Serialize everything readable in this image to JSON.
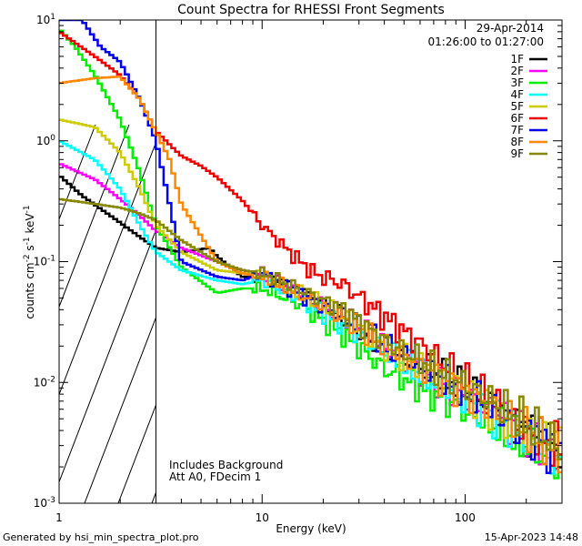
{
  "chart_data": {
    "type": "line",
    "title": "Count Spectra for RHESSI Front Segments",
    "xlabel": "Energy (keV)",
    "ylabel_parts": {
      "a": "counts cm",
      "b": "-2",
      "c": " s",
      "d": "-1",
      "e": " keV",
      "f": "-1"
    },
    "xscale": "log",
    "yscale": "log",
    "xlim": [
      1,
      300
    ],
    "ylim": [
      0.001,
      10
    ],
    "x_ticks": [
      {
        "value": 1,
        "label": "1"
      },
      {
        "value": 10,
        "label": "10"
      },
      {
        "value": 100,
        "label": "100"
      }
    ],
    "y_ticks": [
      {
        "value": 0.001,
        "mant": "10",
        "exp": "-3"
      },
      {
        "value": 0.01,
        "mant": "10",
        "exp": "-2"
      },
      {
        "value": 0.1,
        "mant": "10",
        "exp": "-1"
      },
      {
        "value": 1,
        "mant": "10",
        "exp": "0"
      },
      {
        "value": 10,
        "mant": "10",
        "exp": "1"
      }
    ],
    "date": "29-Apr-2014",
    "time_range": "01:26:00 to 01:27:00",
    "threshold_keV": 3,
    "shaded_region": "hatched below 3 keV",
    "annotation_lines": [
      "Includes Background",
      "Att A0, FDecim 1"
    ],
    "footer_left": "Generated by hsi_min_spectra_plot.pro",
    "footer_right": "15-Apr-2023 14:48",
    "legend_position": "top-right",
    "series": [
      {
        "name": "1F",
        "color": "#000000",
        "anchors": [
          [
            1,
            0.52
          ],
          [
            1.3,
            0.35
          ],
          [
            2,
            0.21
          ],
          [
            2.5,
            0.16
          ],
          [
            3,
            0.13
          ],
          [
            4,
            0.12
          ],
          [
            5.5,
            0.13
          ],
          [
            6,
            0.11
          ],
          [
            8,
            0.075
          ],
          [
            10,
            0.075
          ],
          [
            15,
            0.06
          ],
          [
            25,
            0.035
          ],
          [
            40,
            0.02
          ],
          [
            70,
            0.012
          ],
          [
            120,
            0.0075
          ],
          [
            200,
            0.004
          ],
          [
            300,
            0.0028
          ]
        ]
      },
      {
        "name": "2F",
        "color": "#ff00ff",
        "anchors": [
          [
            1,
            0.65
          ],
          [
            1.5,
            0.48
          ],
          [
            2,
            0.33
          ],
          [
            2.5,
            0.24
          ],
          [
            3,
            0.18
          ],
          [
            4,
            0.13
          ],
          [
            6,
            0.1
          ],
          [
            8,
            0.085
          ],
          [
            10,
            0.08
          ],
          [
            15,
            0.055
          ],
          [
            25,
            0.035
          ],
          [
            40,
            0.02
          ],
          [
            70,
            0.011
          ],
          [
            120,
            0.0065
          ],
          [
            200,
            0.0038
          ],
          [
            300,
            0.0025
          ]
        ]
      },
      {
        "name": "3F",
        "color": "#00ee00",
        "anchors": [
          [
            1,
            8.5
          ],
          [
            1.2,
            6
          ],
          [
            1.5,
            3.5
          ],
          [
            2,
            1.5
          ],
          [
            2.5,
            0.55
          ],
          [
            3,
            0.2
          ],
          [
            4,
            0.09
          ],
          [
            6,
            0.055
          ],
          [
            8,
            0.06
          ],
          [
            10,
            0.06
          ],
          [
            15,
            0.045
          ],
          [
            25,
            0.025
          ],
          [
            40,
            0.013
          ],
          [
            70,
            0.008
          ],
          [
            120,
            0.005
          ],
          [
            200,
            0.003
          ],
          [
            300,
            0.002
          ]
        ]
      },
      {
        "name": "4F",
        "color": "#00ffff",
        "anchors": [
          [
            1,
            1.0
          ],
          [
            1.5,
            0.7
          ],
          [
            2,
            0.4
          ],
          [
            2.5,
            0.2
          ],
          [
            3,
            0.12
          ],
          [
            4,
            0.085
          ],
          [
            6,
            0.07
          ],
          [
            8,
            0.065
          ],
          [
            10,
            0.07
          ],
          [
            15,
            0.05
          ],
          [
            25,
            0.03
          ],
          [
            40,
            0.018
          ],
          [
            70,
            0.01
          ],
          [
            120,
            0.006
          ],
          [
            200,
            0.0035
          ],
          [
            300,
            0.0022
          ]
        ]
      },
      {
        "name": "5F",
        "color": "#cccc00",
        "anchors": [
          [
            1,
            1.5
          ],
          [
            1.5,
            1.3
          ],
          [
            2,
            0.8
          ],
          [
            2.5,
            0.4
          ],
          [
            3,
            0.2
          ],
          [
            4,
            0.12
          ],
          [
            6,
            0.085
          ],
          [
            8,
            0.08
          ],
          [
            10,
            0.08
          ],
          [
            15,
            0.055
          ],
          [
            25,
            0.035
          ],
          [
            40,
            0.02
          ],
          [
            70,
            0.012
          ],
          [
            120,
            0.007
          ],
          [
            200,
            0.004
          ],
          [
            300,
            0.0025
          ]
        ]
      },
      {
        "name": "6F",
        "color": "#ee0000",
        "anchors": [
          [
            1,
            8
          ],
          [
            1.5,
            5
          ],
          [
            2,
            3.5
          ],
          [
            2.5,
            2.2
          ],
          [
            3,
            1.2
          ],
          [
            4,
            0.75
          ],
          [
            5,
            0.62
          ],
          [
            6,
            0.5
          ],
          [
            8,
            0.32
          ],
          [
            10,
            0.2
          ],
          [
            13,
            0.13
          ],
          [
            18,
            0.08
          ],
          [
            25,
            0.065
          ],
          [
            40,
            0.035
          ],
          [
            70,
            0.017
          ],
          [
            100,
            0.01
          ],
          [
            150,
            0.006
          ],
          [
            200,
            0.004
          ],
          [
            300,
            0.0028
          ]
        ]
      },
      {
        "name": "7F",
        "color": "#0000ee",
        "anchors": [
          [
            1,
            10
          ],
          [
            1.3,
            10
          ],
          [
            1.6,
            6
          ],
          [
            2,
            4.5
          ],
          [
            2.5,
            2.2
          ],
          [
            3,
            1.0
          ],
          [
            3.5,
            0.3
          ],
          [
            4,
            0.1
          ],
          [
            6,
            0.075
          ],
          [
            8,
            0.07
          ],
          [
            10,
            0.08
          ],
          [
            15,
            0.055
          ],
          [
            25,
            0.035
          ],
          [
            40,
            0.02
          ],
          [
            70,
            0.012
          ],
          [
            120,
            0.007
          ],
          [
            200,
            0.004
          ],
          [
            300,
            0.0025
          ]
        ]
      },
      {
        "name": "8F",
        "color": "#ff8800",
        "anchors": [
          [
            1,
            3
          ],
          [
            1.5,
            3.3
          ],
          [
            2,
            3.4
          ],
          [
            2.5,
            2.2
          ],
          [
            3,
            1.2
          ],
          [
            3.5,
            0.7
          ],
          [
            4,
            0.3
          ],
          [
            6,
            0.1
          ],
          [
            8,
            0.08
          ],
          [
            10,
            0.075
          ],
          [
            15,
            0.055
          ],
          [
            25,
            0.035
          ],
          [
            40,
            0.02
          ],
          [
            70,
            0.012
          ],
          [
            120,
            0.007
          ],
          [
            200,
            0.004
          ],
          [
            300,
            0.0025
          ]
        ]
      },
      {
        "name": "9F",
        "color": "#888800",
        "anchors": [
          [
            1,
            0.33
          ],
          [
            1.5,
            0.3
          ],
          [
            2,
            0.28
          ],
          [
            2.5,
            0.25
          ],
          [
            3,
            0.22
          ],
          [
            4,
            0.15
          ],
          [
            6,
            0.1
          ],
          [
            8,
            0.085
          ],
          [
            10,
            0.08
          ],
          [
            15,
            0.06
          ],
          [
            25,
            0.04
          ],
          [
            40,
            0.022
          ],
          [
            70,
            0.013
          ],
          [
            120,
            0.008
          ],
          [
            200,
            0.0045
          ],
          [
            300,
            0.0028
          ]
        ]
      }
    ]
  }
}
